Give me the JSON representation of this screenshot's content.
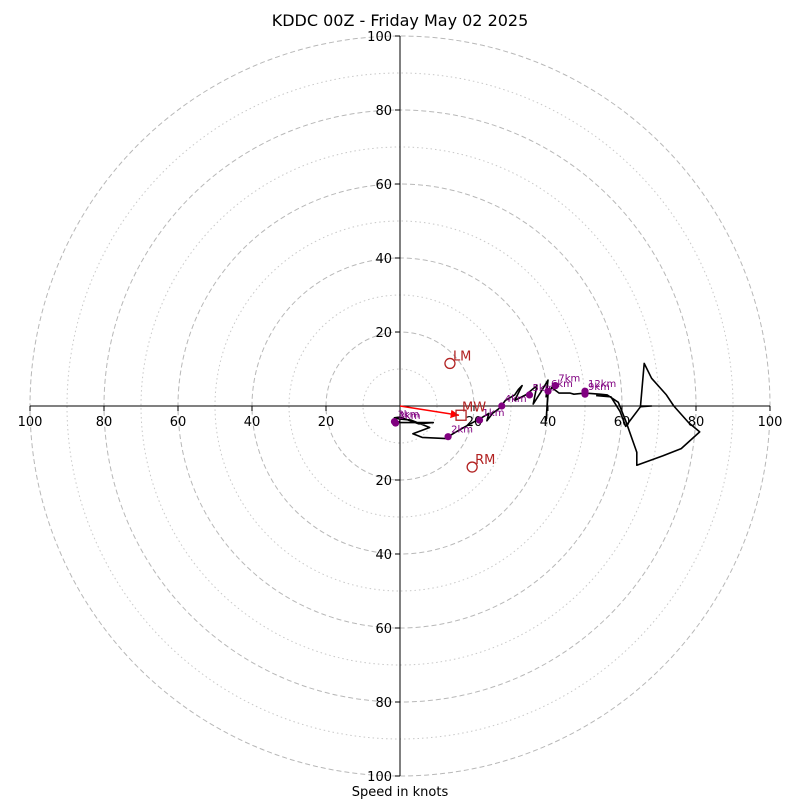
{
  "chart_data": {
    "type": "line",
    "title": "KDDC 00Z - Friday May 02 2025",
    "xlabel": "Speed in knots",
    "rings": {
      "major": [
        20,
        40,
        60,
        80,
        100
      ],
      "minor": [
        10,
        30,
        50,
        70,
        90
      ],
      "major_style": "dashed",
      "minor_style": "dotted"
    },
    "axis_range": [
      -100,
      100
    ],
    "ticks": {
      "left": [
        "100",
        "80",
        "60",
        "40",
        "20"
      ],
      "right": [
        "20",
        "40",
        "60",
        "80",
        "100"
      ],
      "top": [
        "100",
        "80",
        "60",
        "40",
        "20"
      ],
      "bottom": [
        "20",
        "40",
        "60",
        "80",
        "100"
      ]
    },
    "hodograph": {
      "color": "#000000",
      "points": [
        [
          0,
          -4
        ],
        [
          -0.5,
          -4.5
        ],
        [
          9,
          -4.5
        ],
        [
          5,
          -4.8
        ],
        [
          0,
          -3
        ],
        [
          -1.5,
          -3.2
        ],
        [
          -0.3,
          -3.5
        ],
        [
          3,
          -3.8
        ],
        [
          6,
          -5
        ],
        [
          8,
          -5.8
        ],
        [
          3.5,
          -7.5
        ],
        [
          6,
          -8.5
        ],
        [
          12.5,
          -8.8
        ],
        [
          13,
          -8.3
        ],
        [
          16,
          -6.5
        ],
        [
          19,
          -4.8
        ],
        [
          21.5,
          -3.5
        ],
        [
          24,
          -2
        ],
        [
          23.5,
          -4
        ],
        [
          25,
          -2
        ],
        [
          27,
          -0.5
        ],
        [
          28.5,
          1.5
        ],
        [
          31,
          3
        ],
        [
          32,
          4.5
        ],
        [
          33,
          5.5
        ],
        [
          31,
          1.5
        ],
        [
          34,
          3
        ],
        [
          37,
          5.5
        ],
        [
          36,
          0.5
        ],
        [
          38.5,
          4.5
        ],
        [
          40,
          7
        ],
        [
          39.5,
          2.5
        ],
        [
          40,
          4
        ],
        [
          39.5,
          -4
        ],
        [
          40,
          3
        ],
        [
          41,
          5
        ],
        [
          43,
          3.5
        ],
        [
          46,
          3.5
        ],
        [
          47,
          3.2
        ],
        [
          50,
          3.5
        ],
        [
          54,
          3.2
        ],
        [
          56,
          3
        ],
        [
          59,
          1
        ],
        [
          61,
          -4
        ],
        [
          64,
          -12.5
        ],
        [
          64,
          -16
        ],
        [
          71,
          -13.5
        ],
        [
          76,
          -11.5
        ],
        [
          81,
          -7
        ],
        [
          78,
          -4.5
        ],
        [
          74,
          0
        ],
        [
          72,
          3
        ],
        [
          68,
          7.5
        ],
        [
          66,
          11.5
        ],
        [
          65,
          0
        ],
        [
          68,
          0
        ],
        [
          65,
          -0.2
        ],
        [
          61,
          -5.5
        ],
        [
          59.5,
          -1.5
        ],
        [
          57,
          2.5
        ],
        [
          53,
          2.8
        ]
      ]
    },
    "height_markers": {
      "color": "#800080",
      "points": [
        {
          "label": "3km",
          "x": -1.5,
          "y": -4.2
        },
        {
          "label": "3km",
          "x": -1.2,
          "y": -4.6
        },
        {
          "label": "2km",
          "x": 13,
          "y": -8.3
        },
        {
          "label": "1km",
          "x": 21.5,
          "y": -3.8
        },
        {
          "label": "4km",
          "x": 27.5,
          "y": 0
        },
        {
          "label": "5km",
          "x": 35,
          "y": 3
        },
        {
          "label": "6km",
          "x": 40,
          "y": 4
        },
        {
          "label": "7km",
          "x": 42,
          "y": 5.5
        },
        {
          "label": "12km",
          "x": 50,
          "y": 4
        },
        {
          "label": "9km",
          "x": 50,
          "y": 3.2
        }
      ]
    },
    "storm_motion": {
      "color": "#b22222",
      "LM": {
        "label": "LM",
        "x": 13.5,
        "y": 11.5
      },
      "RM": {
        "label": "RM",
        "x": 19.5,
        "y": -16.5
      },
      "MW": {
        "label": "MW",
        "x": 16.5,
        "y": -2.5
      }
    },
    "shear_arrow": {
      "color": "#ff0000",
      "from": [
        0,
        0
      ],
      "to": [
        16.5,
        -2.5
      ]
    }
  }
}
